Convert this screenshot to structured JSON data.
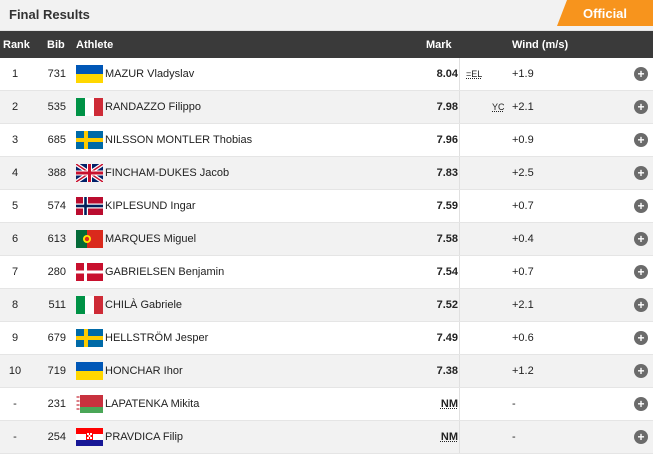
{
  "header": {
    "title": "Final Results",
    "status_badge": "Official"
  },
  "columns": {
    "rank": "Rank",
    "bib": "Bib",
    "athlete": "Athlete",
    "mark": "Mark",
    "wind": "Wind (m/s)"
  },
  "rows": [
    {
      "rank": "1",
      "bib": "731",
      "athlete": "MAZUR Vladyslav",
      "flag": "ukraine",
      "mark": "8.04",
      "note": "=EL",
      "wind": "+1.9"
    },
    {
      "rank": "2",
      "bib": "535",
      "athlete": "RANDAZZO Filippo",
      "flag": "italy",
      "mark": "7.98",
      "note": "YC",
      "wind": "+2.1"
    },
    {
      "rank": "3",
      "bib": "685",
      "athlete": "NILSSON MONTLER Thobias",
      "flag": "sweden",
      "mark": "7.96",
      "note": "",
      "wind": "+0.9"
    },
    {
      "rank": "4",
      "bib": "388",
      "athlete": "FINCHAM-DUKES Jacob",
      "flag": "uk",
      "mark": "7.83",
      "note": "",
      "wind": "+2.5"
    },
    {
      "rank": "5",
      "bib": "574",
      "athlete": "KIPLESUND Ingar",
      "flag": "norway",
      "mark": "7.59",
      "note": "",
      "wind": "+0.7"
    },
    {
      "rank": "6",
      "bib": "613",
      "athlete": "MARQUES Miguel",
      "flag": "portugal",
      "mark": "7.58",
      "note": "",
      "wind": "+0.4"
    },
    {
      "rank": "7",
      "bib": "280",
      "athlete": "GABRIELSEN Benjamin",
      "flag": "denmark",
      "mark": "7.54",
      "note": "",
      "wind": "+0.7"
    },
    {
      "rank": "8",
      "bib": "511",
      "athlete": "CHILÀ Gabriele",
      "flag": "italy",
      "mark": "7.52",
      "note": "",
      "wind": "+2.1"
    },
    {
      "rank": "9",
      "bib": "679",
      "athlete": "HELLSTRÖM Jesper",
      "flag": "sweden",
      "mark": "7.49",
      "note": "",
      "wind": "+0.6"
    },
    {
      "rank": "10",
      "bib": "719",
      "athlete": "HONCHAR Ihor",
      "flag": "ukraine",
      "mark": "7.38",
      "note": "",
      "wind": "+1.2"
    },
    {
      "rank": "-",
      "bib": "231",
      "athlete": "LAPATENKA Mikita",
      "flag": "belarus",
      "mark": "NM",
      "note": "",
      "wind": "-"
    },
    {
      "rank": "-",
      "bib": "254",
      "athlete": "PRAVDICA Filip",
      "flag": "croatia",
      "mark": "NM",
      "note": "",
      "wind": "-"
    }
  ],
  "expand_icon": "plus-circle-icon",
  "colors": {
    "accent": "#f7941d",
    "header_bg": "#3a3a3a",
    "expand_button": "#6b6b6b"
  }
}
